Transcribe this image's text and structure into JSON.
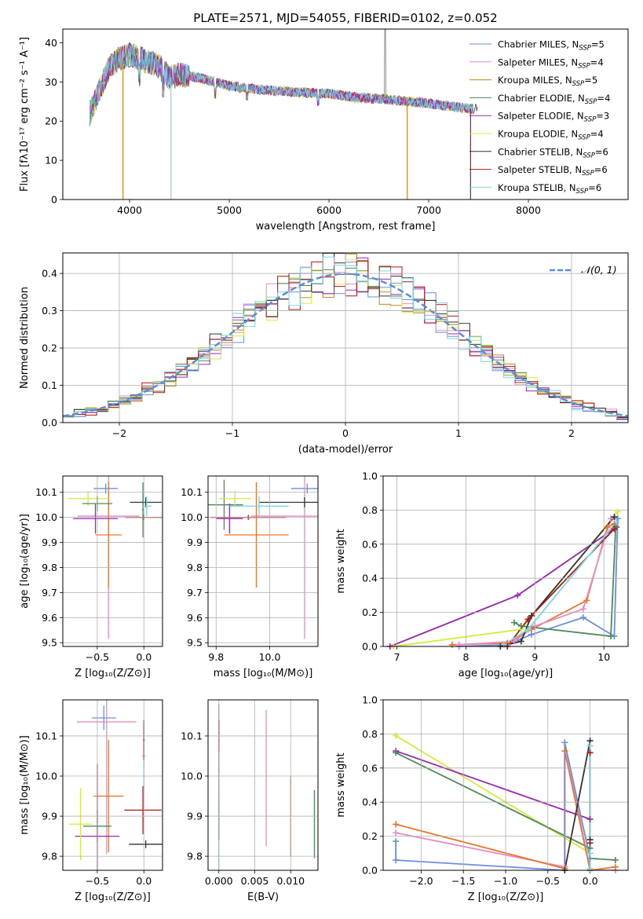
{
  "colors": {
    "Chabrier MILES": "#6b8fe0",
    "Salpeter MILES": "#e88cc4",
    "Kroupa MILES": "#c0861a",
    "Chabrier ELODIE": "#4d8a5a",
    "Salpeter ELODIE": "#9b27b0",
    "Kroupa ELODIE": "#d4ea3c",
    "Chabrier STELIB": "#333333",
    "Salpeter STELIB": "#b01818",
    "Kroupa STELIB": "#7ad8e4",
    "orange": "#e9772b",
    "gauss": "#5a8dd8",
    "grid": "#b0b0b0"
  },
  "chart_data": [
    {
      "id": "spectrum",
      "type": "line",
      "title": "PLATE=2571, MJD=54055, FIBERID=0102, z=0.052",
      "xlabel": "wavelength [Angstrom, rest frame]",
      "ylabel": "Flux [fλ10⁻¹⁷ erg cm⁻² s⁻¹ A⁻¹]",
      "xlim": [
        3330,
        9000
      ],
      "ylim": [
        0,
        43.5
      ],
      "xticks": [
        4000,
        5000,
        6000,
        7000,
        8000
      ],
      "yticks": [
        0,
        10,
        20,
        30,
        40
      ],
      "grid": false,
      "legend_position": "top-right",
      "legend": [
        {
          "name": "Chabrier MILES",
          "nssp": "5"
        },
        {
          "name": "Salpeter MILES",
          "nssp": "4"
        },
        {
          "name": "Kroupa MILES",
          "nssp": "5"
        },
        {
          "name": "Chabrier ELODIE",
          "nssp": "4"
        },
        {
          "name": "Salpeter ELODIE",
          "nssp": "3"
        },
        {
          "name": "Kroupa ELODIE",
          "nssp": "4"
        },
        {
          "name": "Chabrier STELIB",
          "nssp": "6"
        },
        {
          "name": "Salpeter STELIB",
          "nssp": "6"
        },
        {
          "name": "Kroupa STELIB",
          "nssp": "6"
        }
      ],
      "continuum_x": [
        3600,
        3700,
        3800,
        3900,
        4000,
        4100,
        4200,
        4300,
        4400,
        4500,
        4700,
        5000,
        5300,
        5600,
        6000,
        6300,
        6600,
        7000,
        7300,
        7500
      ],
      "continuum_y": [
        22,
        28,
        34,
        36,
        37,
        36,
        35,
        34,
        31,
        32,
        31,
        29,
        28,
        27.5,
        27,
        26,
        25.5,
        24.5,
        23.5,
        23
      ],
      "dips": [
        {
          "x": 3934,
          "y": 0,
          "series": "Kroupa MILES"
        },
        {
          "x": 4415,
          "y": 0,
          "series": "Kroupa STELIB"
        },
        {
          "x": 6785,
          "y": 0,
          "series": "Kroupa MILES"
        },
        {
          "x": 7420,
          "y": 0,
          "series": "Salpeter STELIB"
        }
      ],
      "spike": {
        "x": 6563,
        "y": 43.5
      }
    },
    {
      "id": "residuals",
      "type": "line",
      "xlabel": "(data-model)/error",
      "ylabel": "Normed distribution",
      "xlim": [
        -2.5,
        2.5
      ],
      "ylim": [
        0,
        0.455
      ],
      "xticks": [
        -2,
        -1,
        0,
        1,
        2
      ],
      "yticks": [
        0.0,
        0.1,
        0.2,
        0.3,
        0.4
      ],
      "grid": true,
      "legend_position": "top-right",
      "legend": "𝒩(0, 1)",
      "gaussian": {
        "mean": 0,
        "sigma": 1
      }
    },
    {
      "id": "age-vs-Z",
      "type": "scatter",
      "xlabel": "Z [log₁₀(Z/Z⊙)]",
      "ylabel": "age  [log₁₀(age/yr)]",
      "xlim": [
        -0.87,
        0.2
      ],
      "ylim": [
        9.485,
        10.165
      ],
      "xticks": [
        -0.5,
        0.0
      ],
      "yticks": [
        9.5,
        9.6,
        9.7,
        9.8,
        9.9,
        10.0,
        10.1
      ],
      "points": [
        {
          "series": "Chabrier MILES",
          "x": -0.41,
          "y": 10.115,
          "xerr": 0.13,
          "yerr": 0.02
        },
        {
          "series": "Salpeter MILES",
          "x": -0.38,
          "y": 10.005,
          "xerr": 0.33,
          "yerr": 0.49
        },
        {
          "series": "orange",
          "x": -0.38,
          "y": 9.93,
          "xerr": 0.14,
          "yerr": 0.21
        },
        {
          "series": "Chabrier ELODIE",
          "x": -0.01,
          "y": 10.03,
          "xerr": 0.01,
          "yerr": 0.11
        },
        {
          "series": "Salpeter ELODIE",
          "x": -0.52,
          "y": 9.995,
          "xerr": 0.24,
          "yerr": 0.06
        },
        {
          "series": "Kroupa ELODIE",
          "x": -0.6,
          "y": 10.075,
          "xerr": 0.22,
          "yerr": 0.03
        },
        {
          "series": "Chabrier STELIB",
          "x": 0.02,
          "y": 10.06,
          "xerr": 0.17,
          "yerr": 0.02
        },
        {
          "series": "Salpeter STELIB",
          "x": 0.0,
          "y": 10.0,
          "xerr": 0.2,
          "yerr": 0.01
        },
        {
          "series": "Kroupa STELIB",
          "x": 0.03,
          "y": 10.045,
          "xerr": 0.05,
          "yerr": 0.04
        },
        {
          "series": "Chabrier ELODIE",
          "x": -0.5,
          "y": 10.055,
          "xerr": 0.16,
          "yerr": 0.03
        }
      ]
    },
    {
      "id": "age-vs-mass",
      "type": "scatter",
      "xlabel": "mass [log₁₀(M/M⊙)]",
      "ylabel": "",
      "xlim": [
        9.77,
        10.18
      ],
      "ylim": [
        9.485,
        10.165
      ],
      "xticks": [
        9.8,
        10.0
      ],
      "yticks": [
        9.5,
        9.6,
        9.7,
        9.8,
        9.9,
        10.0,
        10.1
      ],
      "points": [
        {
          "series": "Chabrier MILES",
          "x": 10.14,
          "y": 10.115,
          "xerr": 0.06,
          "yerr": 0.02
        },
        {
          "series": "Salpeter MILES",
          "x": 10.13,
          "y": 10.005,
          "xerr": 0.2,
          "yerr": 0.49
        },
        {
          "series": "orange",
          "x": 9.95,
          "y": 9.93,
          "xerr": 0.12,
          "yerr": 0.21
        },
        {
          "series": "Chabrier ELODIE",
          "x": 9.83,
          "y": 10.05,
          "xerr": 0.07,
          "yerr": 0.1
        },
        {
          "series": "Salpeter ELODIE",
          "x": 9.85,
          "y": 9.995,
          "xerr": 0.05,
          "yerr": 0.06
        },
        {
          "series": "Kroupa ELODIE",
          "x": 9.87,
          "y": 10.075,
          "xerr": 0.06,
          "yerr": 0.03
        },
        {
          "series": "Chabrier STELIB",
          "x": 10.13,
          "y": 10.06,
          "xerr": 0.17,
          "yerr": 0.02
        },
        {
          "series": "Salpeter STELIB",
          "x": 9.92,
          "y": 10.0,
          "xerr": 0.14,
          "yerr": 0.01
        },
        {
          "series": "Kroupa STELIB",
          "x": 9.96,
          "y": 10.045,
          "xerr": 0.11,
          "yerr": 0.04
        }
      ]
    },
    {
      "id": "weight-vs-age",
      "type": "line",
      "xlabel": "age  [log₁₀(age/yr)]",
      "ylabel": "mass weight",
      "xlim": [
        6.8,
        10.35
      ],
      "ylim": [
        0,
        1.0
      ],
      "xticks": [
        7,
        8,
        9,
        10
      ],
      "yticks": [
        0.0,
        0.2,
        0.4,
        0.6,
        0.8,
        1.0
      ],
      "grid": true,
      "series": [
        {
          "name": "Salpeter ELODIE",
          "x": [
            6.9,
            8.75,
            10.18
          ],
          "y": [
            0.0,
            0.3,
            0.7
          ]
        },
        {
          "name": "Kroupa ELODIE",
          "x": [
            6.95,
            8.8,
            10.2
          ],
          "y": [
            0.0,
            0.1,
            0.79
          ]
        },
        {
          "name": "Chabrier MILES",
          "x": [
            7.9,
            8.6,
            8.95,
            9.7,
            10.15,
            10.2
          ],
          "y": [
            0.0,
            0.01,
            0.07,
            0.17,
            0.06,
            0.75
          ]
        },
        {
          "name": "orange",
          "x": [
            7.8,
            8.6,
            8.95,
            9.75,
            10.05,
            10.15
          ],
          "y": [
            0.01,
            0.02,
            0.1,
            0.27,
            0.7,
            0.72
          ]
        },
        {
          "name": "Salpeter MILES",
          "x": [
            7.9,
            8.7,
            9.0,
            9.7,
            10.1
          ],
          "y": [
            0.01,
            0.03,
            0.12,
            0.22,
            0.75
          ]
        },
        {
          "name": "Chabrier ELODIE",
          "x": [
            8.7,
            8.8,
            10.1,
            10.17
          ],
          "y": [
            0.14,
            0.12,
            0.06,
            0.7
          ]
        },
        {
          "name": "Chabrier STELIB",
          "x": [
            8.5,
            8.8,
            8.95,
            10.15
          ],
          "y": [
            0.0,
            0.03,
            0.18,
            0.76
          ]
        },
        {
          "name": "Salpeter STELIB",
          "x": [
            8.6,
            8.9,
            10.15
          ],
          "y": [
            0.0,
            0.16,
            0.69
          ]
        },
        {
          "name": "Kroupa STELIB",
          "x": [
            8.55,
            8.9,
            10.18
          ],
          "y": [
            0.01,
            0.1,
            0.73
          ]
        }
      ]
    },
    {
      "id": "mass-vs-Z",
      "type": "scatter",
      "xlabel": "Z [log₁₀(Z/Z⊙)]",
      "ylabel": "mass [log₁₀(M/M⊙)]",
      "xlim": [
        -0.87,
        0.2
      ],
      "ylim": [
        9.765,
        10.19
      ],
      "xticks": [
        -0.5,
        0.0
      ],
      "yticks": [
        9.8,
        9.9,
        10.0,
        10.1
      ],
      "points": [
        {
          "series": "Chabrier MILES",
          "x": -0.43,
          "y": 10.145,
          "xerr": 0.13,
          "yerr": 0.03
        },
        {
          "series": "Salpeter MILES",
          "x": -0.4,
          "y": 10.135,
          "xerr": 0.32,
          "yerr": 0.33
        },
        {
          "series": "orange",
          "x": -0.38,
          "y": 9.95,
          "xerr": 0.16,
          "yerr": 0.14
        },
        {
          "series": "Chabrier ELODIE",
          "x": -0.5,
          "y": 9.875,
          "xerr": 0.15,
          "yerr": 0.04
        },
        {
          "series": "Salpeter ELODIE",
          "x": -0.5,
          "y": 9.85,
          "xerr": 0.24,
          "yerr": 0.18
        },
        {
          "series": "Kroupa ELODIE",
          "x": -0.68,
          "y": 9.88,
          "xerr": 0.12,
          "yerr": 0.09
        },
        {
          "series": "Chabrier STELIB",
          "x": 0.02,
          "y": 9.83,
          "xerr": 0.18,
          "yerr": 0.01
        },
        {
          "series": "Salpeter STELIB",
          "x": -0.01,
          "y": 9.915,
          "xerr": 0.2,
          "yerr": 0.06
        },
        {
          "series": "Kroupa STELIB",
          "x": 0.0,
          "y": 10.05,
          "xerr": 0.02,
          "yerr": 0.08
        },
        {
          "series": "Salpeter STELIB",
          "x": 0.0,
          "y": 10.09,
          "xerr": 0.01,
          "yerr": 0.05
        }
      ]
    },
    {
      "id": "mass-vs-EBV",
      "type": "scatter",
      "xlabel": "E(B-V)",
      "ylabel": "",
      "xlim": [
        -0.0015,
        0.0138
      ],
      "ylim": [
        9.765,
        10.19
      ],
      "xticks": [
        0.0,
        0.005,
        0.01
      ],
      "xticklabels": [
        "0.000",
        "0.005",
        "0.010"
      ],
      "yticks": [
        9.8,
        9.9,
        10.0,
        10.1
      ],
      "points": [
        {
          "series": "Chabrier MILES",
          "x": 0.0,
          "y": 10.14,
          "xerr": 0,
          "yerr": 0.04
        },
        {
          "series": "Salpeter STELIB",
          "x": 0.0,
          "y": 10.1,
          "xerr": 0,
          "yerr": 0.04
        },
        {
          "series": "Kroupa STELIB",
          "x": 0.0,
          "y": 9.85,
          "xerr": 0,
          "yerr": 0.09
        },
        {
          "series": "Chabrier ELODIE",
          "x": 0.0,
          "y": 9.95,
          "xerr": 0,
          "yerr": 0.11
        },
        {
          "series": "Salpeter MILES",
          "x": 0.0066,
          "y": 9.995,
          "xerr": 0,
          "yerr": 0.17
        },
        {
          "series": "orange",
          "x": 0.01,
          "y": 9.9,
          "xerr": 0,
          "yerr": 0.1
        },
        {
          "series": "Chabrier ELODIE",
          "x": 0.0133,
          "y": 9.88,
          "xerr": 0,
          "yerr": 0.085
        }
      ]
    },
    {
      "id": "weight-vs-Z",
      "type": "line",
      "xlabel": "Z [log₁₀(Z/Z⊙)]",
      "ylabel": "mass weight",
      "xlim": [
        -2.45,
        0.45
      ],
      "ylim": [
        0,
        1.0
      ],
      "xticks": [
        -2.0,
        -1.5,
        -1.0,
        -0.5,
        0.0
      ],
      "yticks": [
        0.0,
        0.2,
        0.4,
        0.6,
        0.8,
        1.0
      ],
      "grid": true,
      "series": [
        {
          "name": "Kroupa ELODIE",
          "x": [
            -2.3,
            0.0,
            0.0
          ],
          "y": [
            0.79,
            0.1,
            0.0
          ]
        },
        {
          "name": "Salpeter ELODIE",
          "x": [
            -2.3,
            0.0,
            0.0
          ],
          "y": [
            0.7,
            0.3,
            0.0
          ]
        },
        {
          "name": "Chabrier ELODIE",
          "x": [
            -2.3,
            0.0,
            0.0,
            0.3
          ],
          "y": [
            0.69,
            0.13,
            0.07,
            0.06
          ]
        },
        {
          "name": "Salpeter MILES",
          "x": [
            -2.3,
            -0.3,
            -0.3,
            0.0,
            0.3
          ],
          "y": [
            0.22,
            0.02,
            0.75,
            0.0,
            0.0
          ]
        },
        {
          "name": "orange",
          "x": [
            -2.3,
            -0.3,
            -0.3,
            0.0,
            0.3
          ],
          "y": [
            0.27,
            0.01,
            0.7,
            0.0,
            0.02
          ]
        },
        {
          "name": "Chabrier MILES",
          "x": [
            -2.3,
            -2.3,
            -0.3,
            -0.3,
            0.0,
            0.0
          ],
          "y": [
            0.17,
            0.06,
            0.0,
            0.75,
            0.07,
            0.0
          ]
        },
        {
          "name": "Chabrier STELIB",
          "x": [
            -0.3,
            0.0,
            0.0
          ],
          "y": [
            0.0,
            0.76,
            0.18
          ]
        },
        {
          "name": "Salpeter STELIB",
          "x": [
            0.0,
            0.0
          ],
          "y": [
            0.69,
            0.16
          ]
        },
        {
          "name": "Kroupa STELIB",
          "x": [
            0.0,
            0.0,
            0.0
          ],
          "y": [
            0.73,
            0.1,
            0.01
          ]
        }
      ]
    }
  ]
}
